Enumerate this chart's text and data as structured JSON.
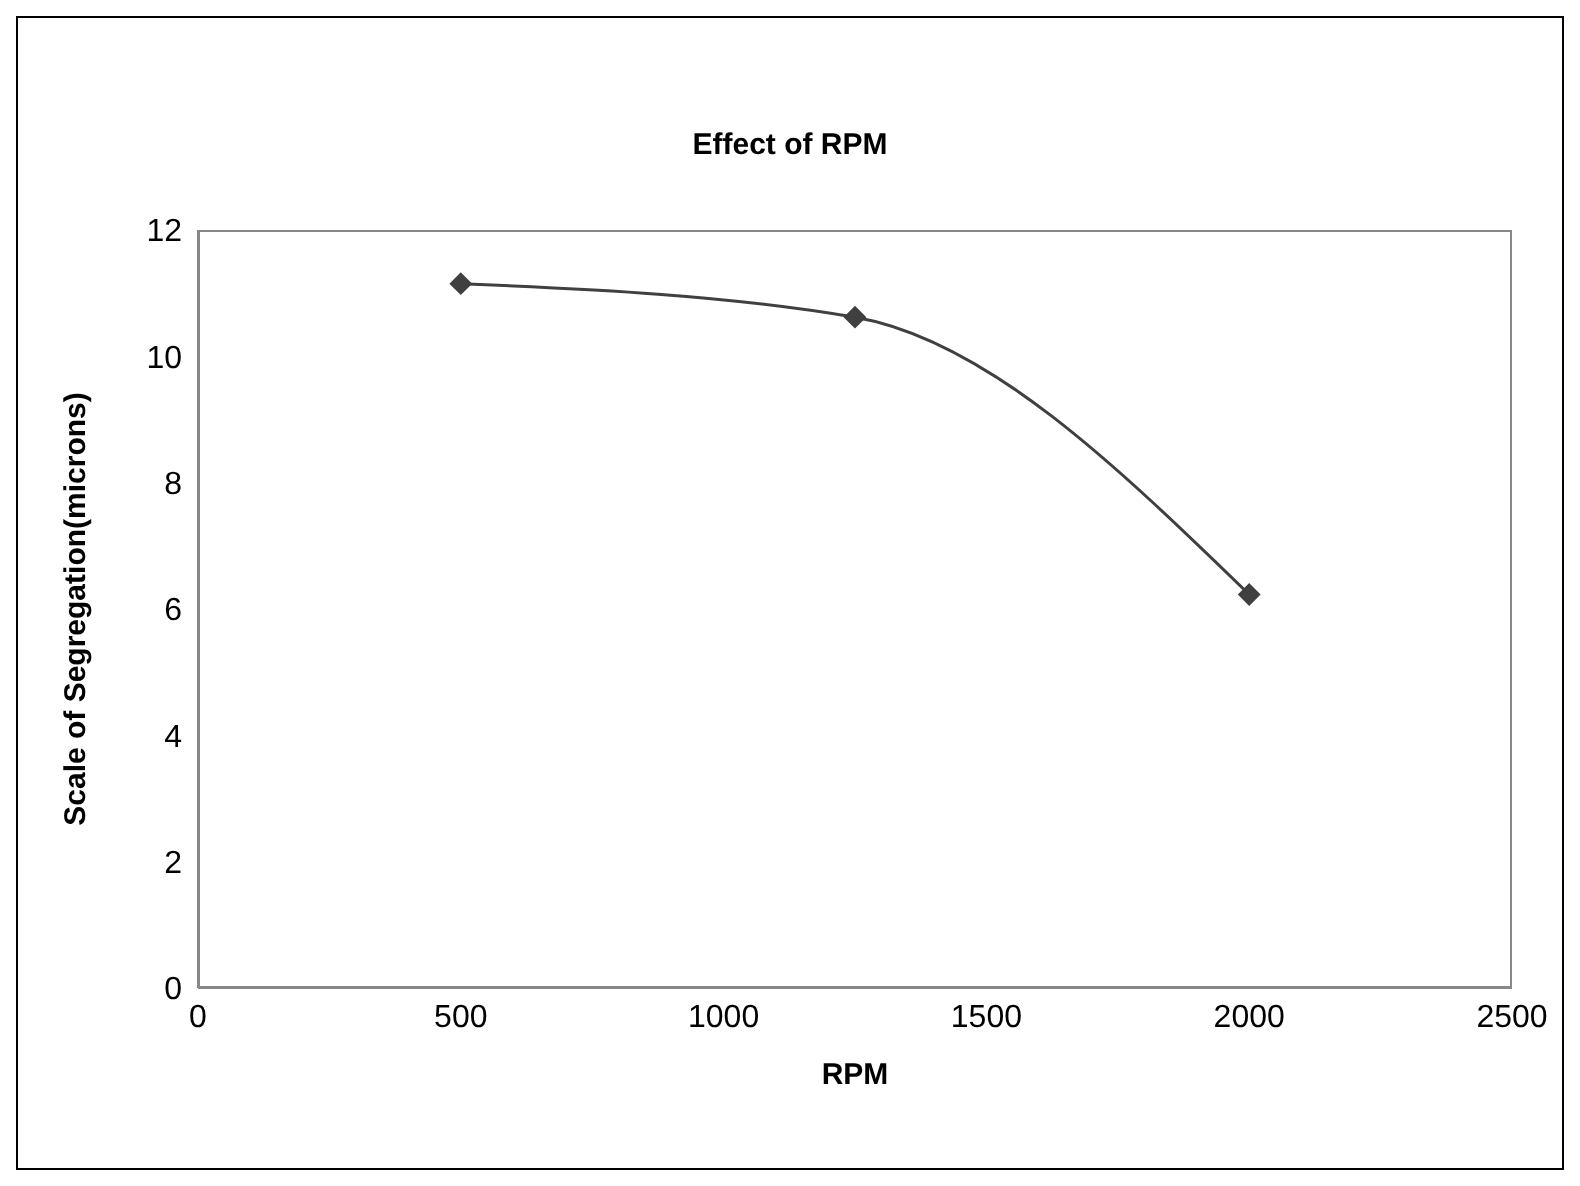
{
  "chart_data": {
    "type": "line",
    "title": "Effect of RPM",
    "xlabel": "RPM",
    "ylabel": "Scale of Segregation(microns)",
    "x": [
      500,
      1250,
      2000
    ],
    "series": [
      {
        "color": "#404040",
        "values": [
          11.15,
          10.62,
          6.23
        ]
      }
    ],
    "xlim": [
      0,
      2500
    ],
    "xticks": [
      0,
      500,
      1000,
      1500,
      2000,
      2500
    ],
    "ylim": [
      0,
      12
    ],
    "yticks": [
      0,
      2,
      4,
      6,
      8,
      10,
      12
    ],
    "marker": "diamond",
    "line_style": "solid"
  }
}
